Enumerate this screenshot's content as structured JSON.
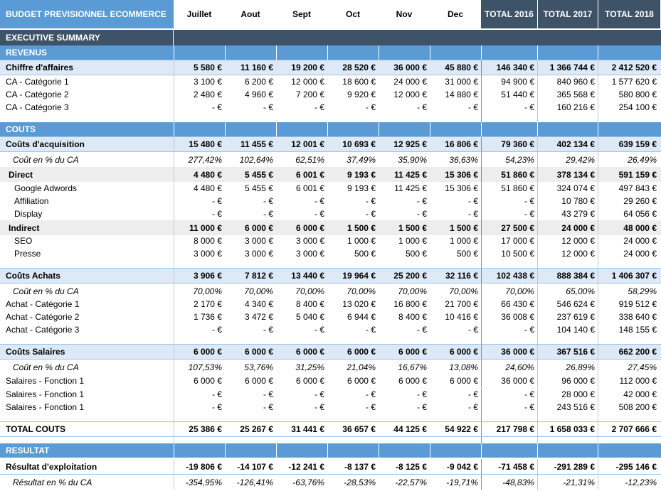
{
  "title": "BUDGET PREVISIONNEL ECOMMERCE",
  "months": [
    "Juillet",
    "Aout",
    "Sept",
    "Oct",
    "Nov",
    "Dec"
  ],
  "totals": [
    "TOTAL 2016",
    "TOTAL 2017",
    "TOTAL 2018"
  ],
  "rows": [
    {
      "type": "exec",
      "label": "EXECUTIVE SUMMARY",
      "top": 0
    },
    {
      "type": "section",
      "label": "REVENUS"
    },
    {
      "type": "head",
      "label": "Chiffre d'affaires",
      "values": [
        "5 580 €",
        "11 160 €",
        "19 200 €",
        "28 520 €",
        "36 000 €",
        "45 880 €",
        "146 340 €",
        "1 366 744 €",
        "2 412 520 €"
      ]
    },
    {
      "type": "line",
      "label": "CA - Catégorie 1",
      "values": [
        "3 100 €",
        "6 200 €",
        "12 000 €",
        "18 600 €",
        "24 000 €",
        "31 000 €",
        "94 900 €",
        "840 960 €",
        "1 577 620 €"
      ]
    },
    {
      "type": "line",
      "label": "CA - Catégorie 2",
      "values": [
        "2 480 €",
        "4 960 €",
        "7 200 €",
        "9 920 €",
        "12 000 €",
        "14 880 €",
        "51 440 €",
        "365 568 €",
        "580 800 €"
      ]
    },
    {
      "type": "line",
      "label": "CA - Catégorie 3",
      "values": [
        "-   €",
        "-   €",
        "-   €",
        "-   €",
        "-   €",
        "-   €",
        "-   €",
        "160 216 €",
        "254 100 €"
      ]
    },
    {
      "type": "blank"
    },
    {
      "type": "section",
      "label": "COUTS"
    },
    {
      "type": "head",
      "label": "Coûts d'acquisition",
      "values": [
        "15 480 €",
        "11 455 €",
        "12 001 €",
        "10 693 €",
        "12 925 €",
        "16 806 €",
        "79 360 €",
        "402 134 €",
        "639 159 €"
      ]
    },
    {
      "type": "pct",
      "label": "Coût en % du CA",
      "values": [
        "277,42%",
        "102,64%",
        "62,51%",
        "37,49%",
        "35,90%",
        "36,63%",
        "54,23%",
        "29,42%",
        "26,49%"
      ]
    },
    {
      "type": "sub",
      "label": "Direct",
      "values": [
        "4 480 €",
        "5 455 €",
        "6 001 €",
        "9 193 €",
        "11 425 €",
        "15 306 €",
        "51 860 €",
        "378 134 €",
        "591 159 €"
      ]
    },
    {
      "type": "indent",
      "label": "Google Adwords",
      "values": [
        "4 480 €",
        "5 455 €",
        "6 001 €",
        "9 193 €",
        "11 425 €",
        "15 306 €",
        "51 860 €",
        "324 074 €",
        "497 843 €"
      ]
    },
    {
      "type": "indent",
      "label": "Affiliation",
      "values": [
        "-   €",
        "-   €",
        "-   €",
        "-   €",
        "-   €",
        "-   €",
        "-   €",
        "10 780 €",
        "29 260 €"
      ]
    },
    {
      "type": "indent",
      "label": "Display",
      "values": [
        "-   €",
        "-   €",
        "-   €",
        "-   €",
        "-   €",
        "-   €",
        "-   €",
        "43 279 €",
        "64 056 €"
      ]
    },
    {
      "type": "sub",
      "label": "Indirect",
      "values": [
        "11 000 €",
        "6 000 €",
        "6 000 €",
        "1 500 €",
        "1 500 €",
        "1 500 €",
        "27 500 €",
        "24 000 €",
        "48 000 €"
      ]
    },
    {
      "type": "indent",
      "label": "SEO",
      "values": [
        "8 000 €",
        "3 000 €",
        "3 000 €",
        "1 000 €",
        "1 000 €",
        "1 000 €",
        "17 000 €",
        "12 000 €",
        "24 000 €"
      ]
    },
    {
      "type": "indent",
      "label": "Presse",
      "values": [
        "3 000 €",
        "3 000 €",
        "3 000 €",
        "500 €",
        "500 €",
        "500 €",
        "10 500 €",
        "12 000 €",
        "24 000 €"
      ]
    },
    {
      "type": "blank"
    },
    {
      "type": "head",
      "label": "Coûts Achats",
      "values": [
        "3 906 €",
        "7 812 €",
        "13 440 €",
        "19 964 €",
        "25 200 €",
        "32 116 €",
        "102 438 €",
        "888 384 €",
        "1 406 307 €"
      ]
    },
    {
      "type": "pct",
      "label": "Coût en % du CA",
      "values": [
        "70,00%",
        "70,00%",
        "70,00%",
        "70,00%",
        "70,00%",
        "70,00%",
        "70,00%",
        "65,00%",
        "58,29%"
      ]
    },
    {
      "type": "line",
      "label": "Achat - Catégorie 1",
      "values": [
        "2 170 €",
        "4 340 €",
        "8 400 €",
        "13 020 €",
        "16 800 €",
        "21 700 €",
        "66 430 €",
        "546 624 €",
        "919 512 €"
      ]
    },
    {
      "type": "line",
      "label": "Achat - Catégorie 2",
      "values": [
        "1 736 €",
        "3 472 €",
        "5 040 €",
        "6 944 €",
        "8 400 €",
        "10 416 €",
        "36 008 €",
        "237 619 €",
        "338 640 €"
      ]
    },
    {
      "type": "line",
      "label": "Achat - Catégorie 3",
      "values": [
        "-   €",
        "-   €",
        "-   €",
        "-   €",
        "-   €",
        "-   €",
        "-   €",
        "104 140 €",
        "148 155 €"
      ]
    },
    {
      "type": "blank"
    },
    {
      "type": "head",
      "label": "Coûts Salaires",
      "values": [
        "6 000 €",
        "6 000 €",
        "6 000 €",
        "6 000 €",
        "6 000 €",
        "6 000 €",
        "36 000 €",
        "367 516 €",
        "662 200 €"
      ]
    },
    {
      "type": "pct",
      "label": "Coût en % du CA",
      "values": [
        "107,53%",
        "53,76%",
        "31,25%",
        "21,04%",
        "16,67%",
        "13,08%",
        "24,60%",
        "26,89%",
        "27,45%"
      ]
    },
    {
      "type": "line",
      "label": "Salaires - Fonction 1",
      "values": [
        "6 000 €",
        "6 000 €",
        "6 000 €",
        "6 000 €",
        "6 000 €",
        "6 000 €",
        "36 000 €",
        "96 000 €",
        "112 000 €"
      ]
    },
    {
      "type": "line",
      "label": "Salaires - Fonction 1",
      "values": [
        "-   €",
        "-   €",
        "-   €",
        "-   €",
        "-   €",
        "-   €",
        "-   €",
        "28 000 €",
        "42 000 €"
      ]
    },
    {
      "type": "line",
      "label": "Salaires - Fonction 1",
      "values": [
        "-   €",
        "-   €",
        "-   €",
        "-   €",
        "-   €",
        "-   €",
        "-   €",
        "243 516 €",
        "508 200 €"
      ]
    },
    {
      "type": "blank"
    },
    {
      "type": "total",
      "label": "TOTAL COUTS",
      "values": [
        "25 386 €",
        "25 267 €",
        "31 441 €",
        "36 657 €",
        "44 125 €",
        "54 922 €",
        "217 798 €",
        "1 658 033 €",
        "2 707 666 €"
      ]
    },
    {
      "type": "blank"
    },
    {
      "type": "section",
      "label": "RESULTAT"
    },
    {
      "type": "result",
      "label": "Résultat d'exploitation",
      "values": [
        "-19 806 €",
        "-14 107 €",
        "-12 241 €",
        "-8 137 €",
        "-8 125 €",
        "-9 042 €",
        "-71 458 €",
        "-291 289 €",
        "-295 146 €"
      ]
    },
    {
      "type": "pct",
      "label": "Résultat en % du CA",
      "values": [
        "-354,95%",
        "-126,41%",
        "-63,76%",
        "-28,53%",
        "-22,57%",
        "-19,71%",
        "-48,83%",
        "-21,31%",
        "-12,23%"
      ]
    }
  ]
}
